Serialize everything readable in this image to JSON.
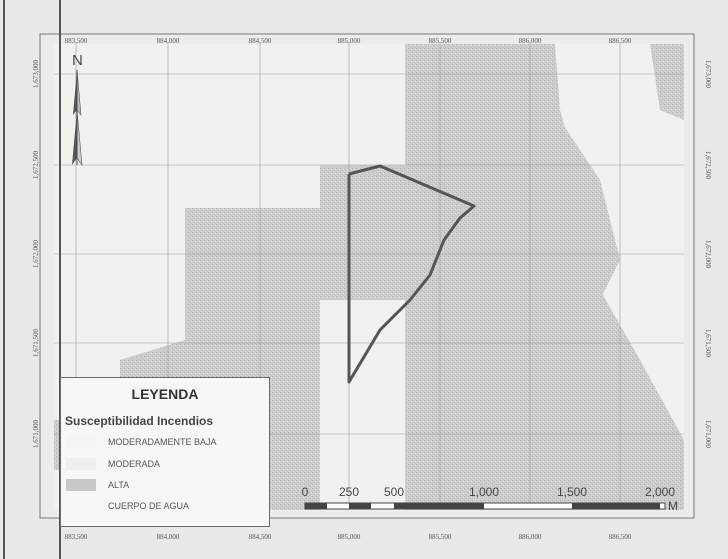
{
  "map": {
    "x_ticks_top": [
      "883,500",
      "884,000",
      "884,500",
      "885,000",
      "885,500",
      "886,000",
      "886,500"
    ],
    "x_ticks_bottom": [
      "883,500",
      "884,000",
      "884,500",
      "885,000",
      "885,500",
      "886,000",
      "886,500"
    ],
    "y_ticks_left": [
      "1,673,000",
      "1,672,500",
      "1,672,000",
      "1,671,500",
      "1,671,000"
    ],
    "y_ticks_right": [
      "1,673,000",
      "1,672,500",
      "1,672,000",
      "1,671,500",
      "1,671,000"
    ]
  },
  "north_arrow": {
    "label": "N"
  },
  "legend": {
    "title": "LEYENDA",
    "subtitle": "Susceptibilidad Incendios",
    "items": [
      {
        "label": "MODERADAMENTE BAJA",
        "color": "#f4f4f2"
      },
      {
        "label": "MODERADA",
        "color": "#eeeeea"
      },
      {
        "label": "ALTA",
        "color": "#c9c9c6"
      },
      {
        "label": "CUERPO DE AGUA",
        "color": "#f7f7f5"
      }
    ]
  },
  "scale_bar": {
    "labels": [
      "0",
      "250",
      "500",
      "1,000",
      "1,500",
      "2,000"
    ],
    "unit": "M"
  },
  "colors": {
    "alta_fill": "#cbcbc8",
    "moderada_fill": "#ecece8",
    "boundary_stroke": "#555555",
    "frame": "#777777"
  }
}
